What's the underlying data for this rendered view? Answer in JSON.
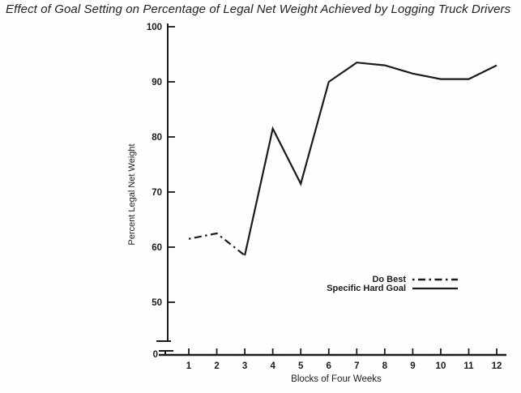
{
  "figure": {
    "title": "Effect of Goal Setting on Percentage of Legal Net Weight Achieved by Logging Truck Drivers"
  },
  "chart_data": {
    "type": "line",
    "title": "Effect of Goal Setting on Percentage of Legal Net Weight Achieved by Logging Truck Drivers",
    "xlabel": "Blocks of Four Weeks",
    "ylabel": "Percent Legal Net Weight",
    "x_ticks": [
      1,
      2,
      3,
      4,
      5,
      6,
      7,
      8,
      9,
      10,
      11,
      12
    ],
    "y_ticks": [
      50,
      60,
      70,
      80,
      90,
      100
    ],
    "y_origin_label": "0",
    "y_axis_break": true,
    "ylim": [
      45,
      100
    ],
    "grid": false,
    "legend_position": "center-right",
    "ink_color": "#1b1b1b",
    "series": [
      {
        "name": "Do Best",
        "line_style": "dashdot",
        "x": [
          1,
          2,
          3
        ],
        "y": [
          61.5,
          62.5,
          58.5
        ]
      },
      {
        "name": "Specific Hard Goal",
        "line_style": "solid",
        "x": [
          3,
          4,
          5,
          6,
          7,
          8,
          9,
          10,
          11,
          12
        ],
        "y": [
          58.5,
          81.5,
          71.5,
          90,
          93.5,
          93,
          91.5,
          90.5,
          90.5,
          93
        ]
      }
    ]
  }
}
